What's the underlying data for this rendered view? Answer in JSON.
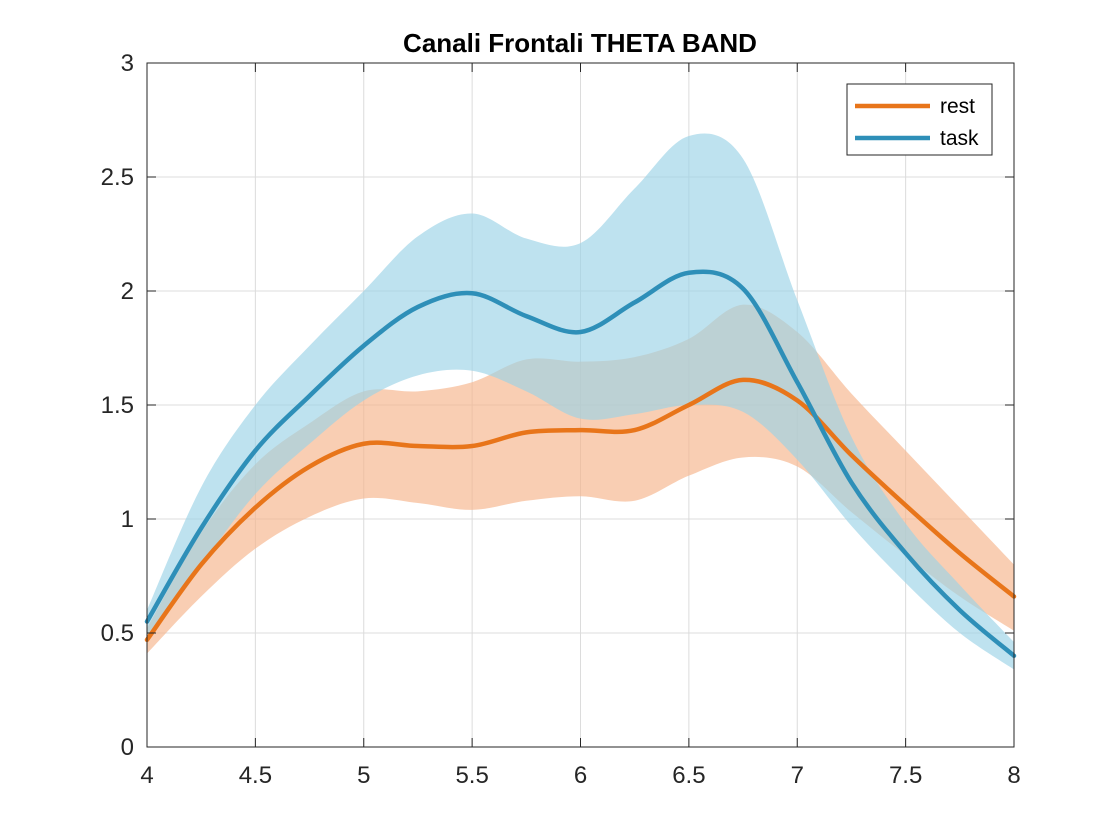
{
  "chart_data": {
    "type": "line",
    "title": "Canali Frontali THETA BAND",
    "xlabel": "",
    "ylabel": "",
    "xlim": [
      4,
      8
    ],
    "ylim": [
      0,
      3
    ],
    "grid": true,
    "legend_position": "top-right",
    "x_ticks": [
      "4",
      "4.5",
      "5",
      "5.5",
      "6",
      "6.5",
      "7",
      "7.5",
      "8"
    ],
    "y_ticks": [
      "0",
      "0.5",
      "1",
      "1.5",
      "2",
      "2.5",
      "3"
    ],
    "series": [
      {
        "name": "rest",
        "color": "#E8751A",
        "band_color": "#F6B48A",
        "x": [
          4.0,
          4.25,
          4.5,
          4.75,
          5.0,
          5.25,
          5.5,
          5.75,
          6.0,
          6.25,
          6.5,
          6.75,
          7.0,
          7.25,
          7.5,
          7.75,
          8.0
        ],
        "mean": [
          0.47,
          0.8,
          1.05,
          1.23,
          1.33,
          1.32,
          1.32,
          1.38,
          1.39,
          1.39,
          1.5,
          1.61,
          1.52,
          1.28,
          1.06,
          0.85,
          0.66
        ],
        "upper": [
          0.52,
          0.94,
          1.24,
          1.42,
          1.56,
          1.56,
          1.6,
          1.7,
          1.69,
          1.71,
          1.79,
          1.94,
          1.82,
          1.55,
          1.3,
          1.05,
          0.8
        ],
        "lower": [
          0.41,
          0.66,
          0.87,
          1.01,
          1.09,
          1.07,
          1.04,
          1.08,
          1.1,
          1.08,
          1.19,
          1.27,
          1.23,
          1.03,
          0.84,
          0.66,
          0.51
        ]
      },
      {
        "name": "task",
        "color": "#2E8FB8",
        "band_color": "#9BD3E7",
        "x": [
          4.0,
          4.25,
          4.5,
          4.75,
          5.0,
          5.25,
          5.5,
          5.75,
          6.0,
          6.25,
          6.5,
          6.75,
          7.0,
          7.25,
          7.5,
          7.75,
          8.0
        ],
        "mean": [
          0.55,
          0.96,
          1.3,
          1.54,
          1.76,
          1.93,
          1.99,
          1.89,
          1.82,
          1.95,
          2.08,
          2.01,
          1.6,
          1.16,
          0.85,
          0.6,
          0.4
        ],
        "upper": [
          0.6,
          1.14,
          1.5,
          1.76,
          2.0,
          2.24,
          2.34,
          2.23,
          2.21,
          2.45,
          2.68,
          2.58,
          1.96,
          1.36,
          0.98,
          0.71,
          0.46
        ],
        "lower": [
          0.49,
          0.8,
          1.11,
          1.33,
          1.52,
          1.63,
          1.65,
          1.56,
          1.44,
          1.46,
          1.5,
          1.47,
          1.26,
          0.97,
          0.72,
          0.5,
          0.34
        ]
      }
    ]
  }
}
